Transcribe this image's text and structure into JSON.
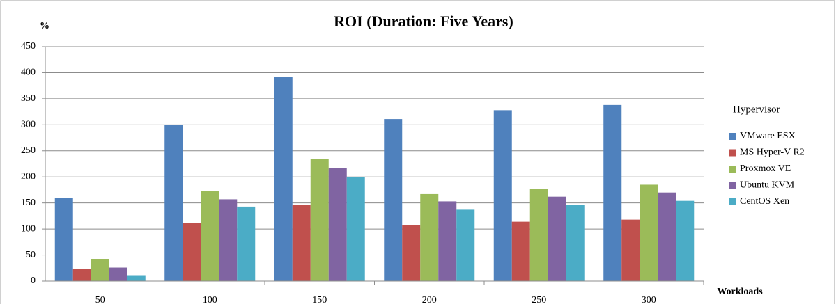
{
  "chart_data": {
    "type": "bar",
    "title": "ROI (Duration: Five Years)",
    "y_label": "%",
    "x_label": "Workloads",
    "legend_title": "Hypervisor",
    "categories": [
      "50",
      "100",
      "150",
      "200",
      "250",
      "300"
    ],
    "series": [
      {
        "name": "VMware ESX",
        "color": "#4f81bd",
        "values": [
          160,
          300,
          392,
          311,
          328,
          338
        ]
      },
      {
        "name": "MS Hyper-V R2",
        "color": "#c0504d",
        "values": [
          24,
          112,
          146,
          108,
          114,
          118
        ]
      },
      {
        "name": "Proxmox VE",
        "color": "#9bbb59",
        "values": [
          42,
          173,
          235,
          167,
          177,
          185
        ]
      },
      {
        "name": "Ubuntu KVM",
        "color": "#8064a2",
        "values": [
          26,
          157,
          217,
          153,
          162,
          170
        ]
      },
      {
        "name": "CentOS Xen",
        "color": "#4bacc6",
        "values": [
          10,
          143,
          200,
          137,
          146,
          154
        ]
      }
    ],
    "ylim": [
      0,
      450
    ],
    "yticks": [
      0,
      50,
      100,
      150,
      200,
      250,
      300,
      350,
      400,
      450
    ],
    "grid": true
  }
}
